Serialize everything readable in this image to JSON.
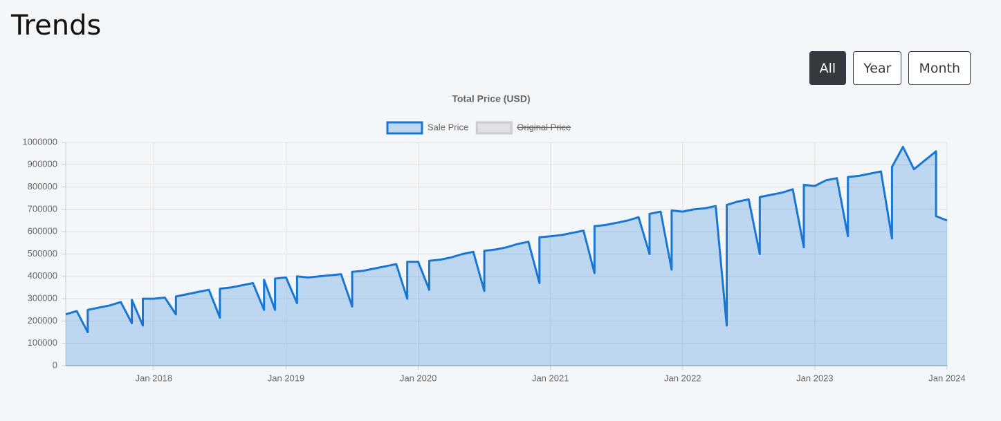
{
  "header": {
    "title": "Trends"
  },
  "range_buttons": [
    "All",
    "Year",
    "Month"
  ],
  "chart_data": {
    "type": "line",
    "title": "Total Price (USD)",
    "fill": true,
    "grid": true,
    "legend": "top",
    "x": [
      "2017-05",
      "2017-06",
      "2017-07",
      "2017-07",
      "2017-08",
      "2017-09",
      "2017-10",
      "2017-11",
      "2017-11",
      "2017-12",
      "2017-12",
      "2018-01",
      "2018-02",
      "2018-03",
      "2018-03",
      "2018-04",
      "2018-05",
      "2018-06",
      "2018-07",
      "2018-07",
      "2018-08",
      "2018-09",
      "2018-10",
      "2018-11",
      "2018-11",
      "2018-12",
      "2018-12",
      "2019-01",
      "2019-02",
      "2019-02",
      "2019-03",
      "2019-04",
      "2019-05",
      "2019-06",
      "2019-07",
      "2019-07",
      "2019-08",
      "2019-09",
      "2019-10",
      "2019-11",
      "2019-12",
      "2019-12",
      "2020-01",
      "2020-02",
      "2020-02",
      "2020-03",
      "2020-04",
      "2020-05",
      "2020-06",
      "2020-07",
      "2020-07",
      "2020-08",
      "2020-09",
      "2020-10",
      "2020-11",
      "2020-12",
      "2020-12",
      "2021-01",
      "2021-02",
      "2021-03",
      "2021-04",
      "2021-05",
      "2021-05",
      "2021-06",
      "2021-07",
      "2021-08",
      "2021-09",
      "2021-10",
      "2021-10",
      "2021-11",
      "2021-12",
      "2021-12",
      "2022-01",
      "2022-02",
      "2022-03",
      "2022-04",
      "2022-05",
      "2022-05",
      "2022-06",
      "2022-07",
      "2022-08",
      "2022-08",
      "2022-09",
      "2022-10",
      "2022-11",
      "2022-12",
      "2022-12",
      "2023-01",
      "2023-02",
      "2023-03",
      "2023-04",
      "2023-04",
      "2023-05",
      "2023-06",
      "2023-07",
      "2023-08",
      "2023-08",
      "2023-09",
      "2023-10",
      "2023-11",
      "2023-12",
      "2023-12",
      "2024-01"
    ],
    "series": [
      {
        "name": "Sale Price",
        "color": "#1976d2",
        "fill_color": "rgba(25,118,210,0.25)",
        "values": [
          230000,
          245000,
          150000,
          250000,
          260000,
          270000,
          285000,
          190000,
          295000,
          180000,
          300000,
          300000,
          305000,
          230000,
          310000,
          320000,
          330000,
          340000,
          215000,
          345000,
          350000,
          360000,
          370000,
          250000,
          385000,
          250000,
          390000,
          395000,
          280000,
          400000,
          395000,
          400000,
          405000,
          410000,
          265000,
          420000,
          425000,
          435000,
          445000,
          455000,
          300000,
          465000,
          465000,
          340000,
          470000,
          475000,
          485000,
          500000,
          510000,
          335000,
          515000,
          520000,
          530000,
          545000,
          555000,
          370000,
          575000,
          580000,
          585000,
          595000,
          605000,
          415000,
          625000,
          630000,
          640000,
          650000,
          665000,
          500000,
          680000,
          690000,
          430000,
          695000,
          690000,
          700000,
          705000,
          715000,
          180000,
          720000,
          735000,
          745000,
          500000,
          755000,
          765000,
          775000,
          790000,
          530000,
          810000,
          805000,
          830000,
          840000,
          580000,
          845000,
          850000,
          860000,
          870000,
          570000,
          890000,
          980000,
          880000,
          920000,
          960000,
          670000,
          650000
        ]
      },
      {
        "name": "Original Price",
        "color": "#c9cbcf",
        "fill_color": "rgba(201,203,207,0.5)",
        "hidden": true,
        "values": [
          null,
          null,
          null,
          null,
          null,
          null,
          null,
          null,
          null,
          null,
          null,
          null,
          null,
          null,
          null,
          null,
          null,
          null,
          null,
          null,
          null,
          null,
          null,
          null,
          null,
          null,
          null,
          null,
          null,
          null,
          null,
          null,
          null,
          null,
          null,
          null,
          null,
          null,
          null,
          null,
          null,
          null,
          null,
          null,
          null,
          null,
          null,
          null,
          null,
          null,
          null,
          null,
          null,
          null,
          null,
          null,
          null,
          null,
          null,
          null,
          null,
          null,
          null,
          null,
          null,
          null,
          null,
          null,
          null,
          null,
          null,
          null,
          null,
          null,
          null,
          null,
          null,
          null,
          null,
          null,
          null,
          null,
          null,
          null,
          null,
          null,
          null,
          null,
          null,
          null,
          null,
          null,
          null,
          null,
          null,
          null,
          null,
          null,
          null,
          null,
          null,
          null,
          null
        ]
      }
    ],
    "xlim": [
      "2017-05",
      "2024-01"
    ],
    "xticks": [
      {
        "value": "2018-01",
        "label": "Jan 2018"
      },
      {
        "value": "2019-01",
        "label": "Jan 2019"
      },
      {
        "value": "2020-01",
        "label": "Jan 2020"
      },
      {
        "value": "2021-01",
        "label": "Jan 2021"
      },
      {
        "value": "2022-01",
        "label": "Jan 2022"
      },
      {
        "value": "2023-01",
        "label": "Jan 2023"
      },
      {
        "value": "2024-01",
        "label": "Jan 2024"
      }
    ],
    "ylim": [
      0,
      1000000
    ],
    "yticks": [
      0,
      100000,
      200000,
      300000,
      400000,
      500000,
      600000,
      700000,
      800000,
      900000,
      1000000
    ]
  }
}
